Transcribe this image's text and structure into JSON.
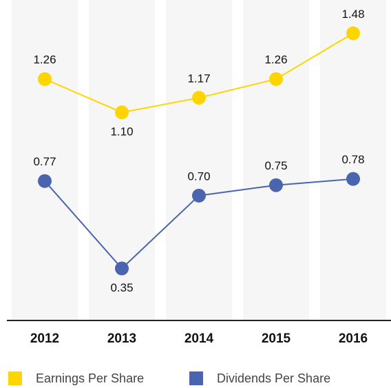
{
  "chart_data": {
    "type": "line",
    "categories": [
      "2012",
      "2013",
      "2014",
      "2015",
      "2016"
    ],
    "series": [
      {
        "name": "Earnings Per Share",
        "color": "#ffd500",
        "values": [
          1.26,
          1.1,
          1.17,
          1.26,
          1.48
        ],
        "value_labels": [
          "1.26",
          "1.10",
          "1.17",
          "1.26",
          "1.48"
        ]
      },
      {
        "name": "Dividends Per Share",
        "color": "#4a65ad",
        "values": [
          0.77,
          0.35,
          0.7,
          0.75,
          0.78
        ],
        "value_labels": [
          "0.77",
          "0.35",
          "0.70",
          "0.75",
          "0.78"
        ]
      }
    ],
    "ylim": [
      0.1,
      1.64
    ]
  }
}
